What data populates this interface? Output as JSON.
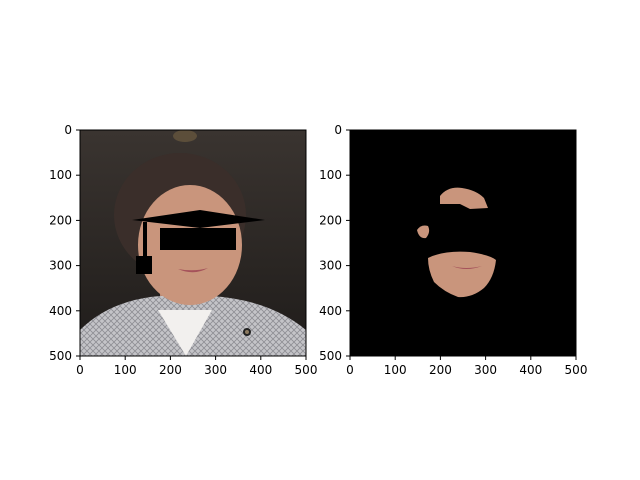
{
  "figure": {
    "panels": [
      {
        "id": "left",
        "image": "photo of a person with a black graduation-cap overlay and a black bar over the eyes",
        "xticks": [
          "0",
          "100",
          "200",
          "300",
          "400",
          "500"
        ],
        "yticks": [
          "0",
          "100",
          "200",
          "300",
          "400",
          "500"
        ],
        "xlim": [
          0,
          500
        ],
        "ylim": [
          0,
          500
        ]
      },
      {
        "id": "right",
        "image": "skin-segmentation mask on black background",
        "xticks": [
          "0",
          "100",
          "200",
          "300",
          "400",
          "500"
        ],
        "yticks": [
          "0",
          "100",
          "200",
          "300",
          "400",
          "500"
        ],
        "xlim": [
          0,
          500
        ],
        "ylim": [
          0,
          500
        ]
      }
    ]
  },
  "colors": {
    "skin": "#c9957c",
    "background_dark": "#2a2623",
    "jacket": "#b8b8bc",
    "hair": "#3a2e2a",
    "mask_bg": "#000000"
  }
}
